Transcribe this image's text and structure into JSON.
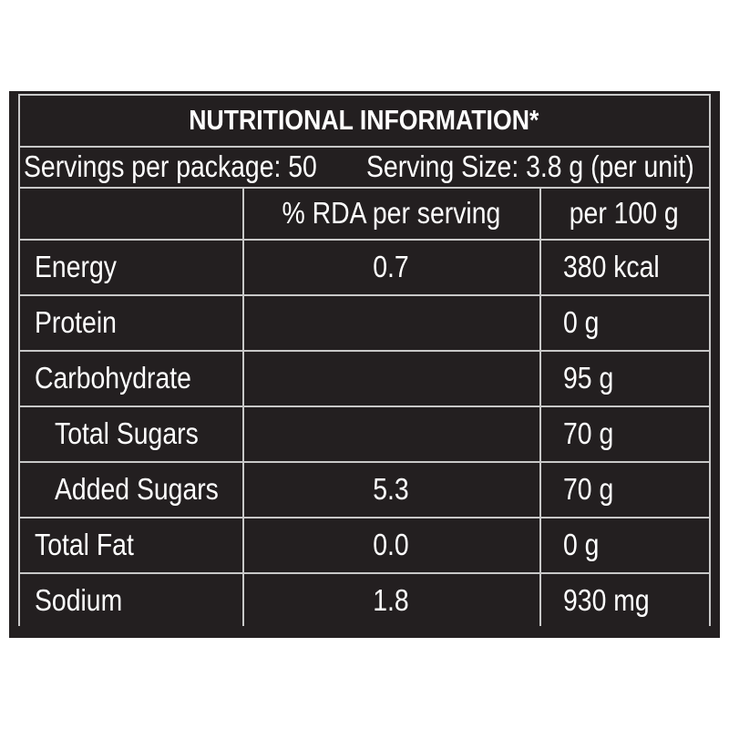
{
  "title": "NUTRITIONAL INFORMATION*",
  "servings": [
    "Servings per package: 50",
    "Serving Size: 3.8 g (per unit)"
  ],
  "table": {
    "columns": [
      "% RDA per serving",
      "per 100 g"
    ],
    "rows": [
      {
        "label": "Energy",
        "rda": "0.7",
        "per100g": "380 kcal"
      },
      {
        "label": "Protein",
        "per100g": "0 g"
      },
      {
        "label": "Carbohydrate",
        "per100g": "95 g"
      },
      {
        "label": "Total Sugars",
        "per100g": "70 g",
        "indent": true
      },
      {
        "label": "Added Sugars",
        "rda": "5.3",
        "per100g": "70 g",
        "indent": true
      },
      {
        "label": "Total Fat",
        "rda": "0.0",
        "per100g": "0 g"
      },
      {
        "label": "Sodium",
        "rda": "1.8",
        "per100g": "930 mg"
      }
    ]
  }
}
